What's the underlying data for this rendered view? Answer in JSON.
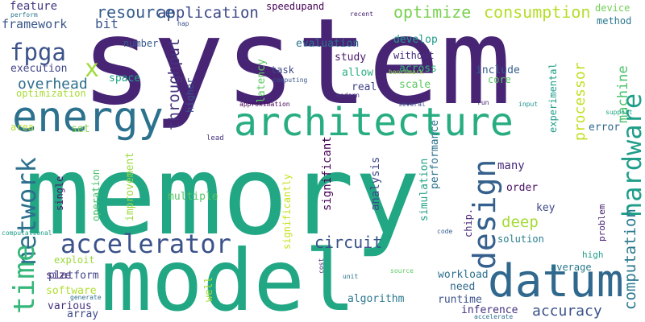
{
  "words": [
    {
      "text": "system",
      "color": "#482475"
    },
    {
      "text": "memory",
      "color": "#22a784"
    },
    {
      "text": "model",
      "color": "#22a784"
    },
    {
      "text": "architecture",
      "color": "#27ad81"
    },
    {
      "text": "energy",
      "color": "#2c728e"
    },
    {
      "text": "datum",
      "color": "#31688e"
    },
    {
      "text": "hardware",
      "color": "#1f9e89"
    },
    {
      "text": "accelerator",
      "color": "#3b528b"
    },
    {
      "text": "design",
      "color": "#35608d"
    },
    {
      "text": "network",
      "color": "#2d708e"
    },
    {
      "text": "time",
      "color": "#35b779"
    },
    {
      "text": "fpga",
      "color": "#3b528b"
    },
    {
      "text": "x",
      "color": "#a0da39"
    },
    {
      "text": "application",
      "color": "#3e4989"
    },
    {
      "text": "resource",
      "color": "#365d8d"
    },
    {
      "text": "optimize",
      "color": "#7ad151"
    },
    {
      "text": "consumption",
      "color": "#b5de2b"
    },
    {
      "text": "circuit",
      "color": "#3b528b"
    },
    {
      "text": "deep",
      "color": "#a5db36"
    },
    {
      "text": "computation",
      "color": "#2a788e"
    },
    {
      "text": "processor",
      "color": "#c2df23"
    },
    {
      "text": "throughput",
      "color": "#46327e"
    },
    {
      "text": "machine",
      "color": "#4ac16d"
    },
    {
      "text": "overhead",
      "color": "#2e6f8e"
    },
    {
      "text": "accuracy",
      "color": "#3b528b"
    },
    {
      "text": "feature",
      "color": "#443983"
    },
    {
      "text": "framework",
      "color": "#39568c"
    },
    {
      "text": "bit",
      "color": "#39568c"
    },
    {
      "text": "speedupand",
      "color": "#440154"
    },
    {
      "text": "device",
      "color": "#73d056"
    },
    {
      "text": "method",
      "color": "#2a788e"
    },
    {
      "text": "evaluation",
      "color": "#2c728e"
    },
    {
      "text": "develop",
      "color": "#1f9a8a"
    },
    {
      "text": "without",
      "color": "#472d7b"
    },
    {
      "text": "study",
      "color": "#481a6c"
    },
    {
      "text": "number",
      "color": "#375a8c"
    },
    {
      "text": "execution",
      "color": "#414487"
    },
    {
      "text": "task",
      "color": "#3e4989"
    },
    {
      "text": "across",
      "color": "#35b779"
    },
    {
      "text": "include",
      "color": "#355f8d"
    },
    {
      "text": "allow",
      "color": "#29af7f"
    },
    {
      "text": "space",
      "color": "#20a486"
    },
    {
      "text": "optimization",
      "color": "#a8db34"
    },
    {
      "text": "real",
      "color": "#414487"
    },
    {
      "text": "scale",
      "color": "#5ec962"
    },
    {
      "text": "core",
      "color": "#5ec962"
    },
    {
      "text": "latency",
      "color": "#5ec962"
    },
    {
      "text": "higher",
      "color": "#3b528b"
    },
    {
      "text": "experimental",
      "color": "#1f9e89"
    },
    {
      "text": "error",
      "color": "#31688e"
    },
    {
      "text": "area",
      "color": "#b5de2b"
    },
    {
      "text": "set",
      "color": "#86d549"
    },
    {
      "text": "lead",
      "color": "#46327e"
    },
    {
      "text": "improvement",
      "color": "#9bd93c"
    },
    {
      "text": "significant",
      "color": "#440154"
    },
    {
      "text": "significantly",
      "color": "#c8e020"
    },
    {
      "text": "analysis",
      "color": "#3e4989"
    },
    {
      "text": "simulation",
      "color": "#20a386"
    },
    {
      "text": "performance",
      "color": "#2c728e"
    },
    {
      "text": "many",
      "color": "#472a7a"
    },
    {
      "text": "order",
      "color": "#470d60"
    },
    {
      "text": "key",
      "color": "#3e4989"
    },
    {
      "text": "multiple",
      "color": "#54c568"
    },
    {
      "text": "single",
      "color": "#481b6d"
    },
    {
      "text": "operation",
      "color": "#4ac16d"
    },
    {
      "text": "chip.",
      "color": "#482878"
    },
    {
      "text": "problem",
      "color": "#482071"
    },
    {
      "text": "solution",
      "color": "#277f8e"
    },
    {
      "text": "exploit",
      "color": "#9bd93c"
    },
    {
      "text": "size",
      "color": "#481f70"
    },
    {
      "text": "high",
      "color": "#1fa088"
    },
    {
      "text": "average",
      "color": "#29798e"
    },
    {
      "text": "platform",
      "color": "#414487"
    },
    {
      "text": "software",
      "color": "#b0dd2f"
    },
    {
      "text": "well",
      "color": "#a8db34"
    },
    {
      "text": "workload",
      "color": "#2c718e"
    },
    {
      "text": "need",
      "color": "#31688e"
    },
    {
      "text": "various",
      "color": "#46327e"
    },
    {
      "text": "array",
      "color": "#3e4989"
    },
    {
      "text": "algorithm",
      "color": "#2a788e"
    },
    {
      "text": "runtime",
      "color": "#3b528b"
    },
    {
      "text": "inference",
      "color": "#46307e"
    },
    {
      "text": "perform",
      "color": "#2a788e"
    },
    {
      "text": "computational",
      "color": "#1f9e89"
    },
    {
      "text": "hap",
      "color": "#3b528b"
    },
    {
      "text": "recent",
      "color": "#482576"
    },
    {
      "text": "benchmark",
      "color": "#8bd646"
    },
    {
      "text": "computing",
      "color": "#39558c"
    },
    {
      "text": "modern",
      "color": "#46327e"
    },
    {
      "text": "approximation",
      "color": "#440154"
    },
    {
      "text": "several",
      "color": "#3d4d8a"
    },
    {
      "text": "run",
      "color": "#482374"
    },
    {
      "text": "input",
      "color": "#20928c"
    },
    {
      "text": "support",
      "color": "#20a386"
    },
    {
      "text": "code",
      "color": "#375b8d"
    },
    {
      "text": "generate",
      "color": "#2e6f8e"
    },
    {
      "text": "cost",
      "color": "#482071"
    },
    {
      "text": "unit",
      "color": "#2c728e"
    },
    {
      "text": "source",
      "color": "#5ec962"
    },
    {
      "text": "accelerate",
      "color": "#2e6f8e"
    }
  ]
}
